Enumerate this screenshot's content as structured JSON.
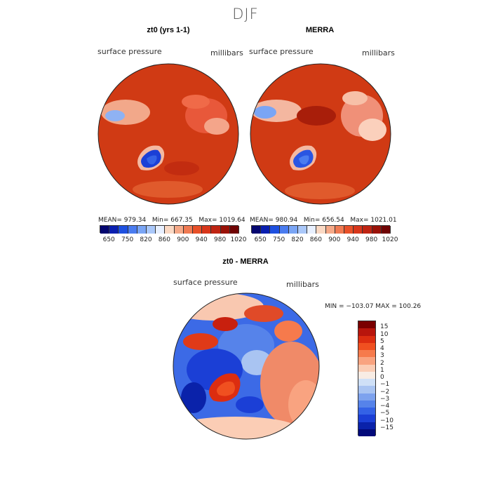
{
  "season": "DJF",
  "panel_left": {
    "title": "zt0 (yrs 1-1)",
    "variable": "surface pressure",
    "units": "millibars",
    "stats": {
      "mean_label": "MEAN=",
      "mean": "979.34",
      "min_label": "Min=",
      "min": "667.35",
      "max_label": "Max=",
      "max": "1019.64"
    }
  },
  "panel_right": {
    "title": "MERRA",
    "variable": "surface pressure",
    "units": "millibars",
    "stats": {
      "mean_label": "MEAN=",
      "mean": "980.94",
      "min_label": "Min=",
      "min": "656.54",
      "max_label": "Max=",
      "max": "1021.01"
    }
  },
  "abs_colorbar": {
    "colors": [
      "#050770",
      "#0a1fb0",
      "#1e50e0",
      "#4a7cf0",
      "#7aa5f5",
      "#aac8fa",
      "#e8f0ff",
      "#fbd9c4",
      "#f6a988",
      "#f07a52",
      "#e85028",
      "#d8361a",
      "#bf2412",
      "#9a1208",
      "#700404"
    ],
    "ticks": [
      "650",
      "750",
      "820",
      "860",
      "900",
      "940",
      "980",
      "1020"
    ]
  },
  "panel_diff": {
    "title": "zt0 - MERRA",
    "variable": "surface pressure",
    "units": "millibars",
    "range_text": "MIN = −103.07  MAX = 100.26"
  },
  "diff_colorbar": {
    "colors": [
      "#7a0000",
      "#b8150c",
      "#dc2d10",
      "#f05020",
      "#f67a4c",
      "#f9a380",
      "#fbcdb5",
      "#f8ece4",
      "#cfe0f7",
      "#a9c4f2",
      "#7da2ee",
      "#5683ea",
      "#3462e6",
      "#1b3fd6",
      "#0a22aa",
      "#020a7a"
    ],
    "ticks": [
      "15",
      "10",
      "5",
      "4",
      "3",
      "2",
      "1",
      "0",
      "−1",
      "−2",
      "−3",
      "−4",
      "−5",
      "−10",
      "−15"
    ]
  }
}
